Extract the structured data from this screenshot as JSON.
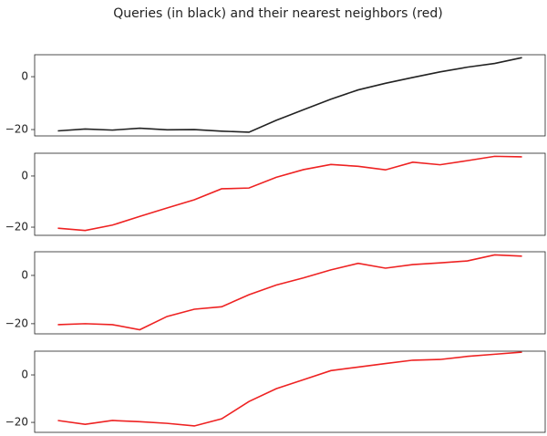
{
  "title": "Queries (in black) and their nearest neighbors (red)",
  "chart_data": [
    {
      "type": "line",
      "x": [
        0,
        1,
        2,
        3,
        4,
        5,
        6,
        7,
        8,
        9,
        10,
        11,
        12,
        13,
        14,
        15,
        16,
        17
      ],
      "xlim": [
        -0.85,
        17.85
      ],
      "ylim": [
        -22.4,
        8.3
      ],
      "yticks": [
        {
          "value": -20,
          "label": "−20"
        },
        0
      ],
      "series": [
        {
          "color": "#222222",
          "values": [
            -20.5,
            -19.8,
            -20.2,
            -19.5,
            -20.1,
            -20,
            -20.6,
            -21,
            -16.5,
            -12.5,
            -8.5,
            -5,
            -2.5,
            -0.3,
            1.8,
            3.6,
            5,
            7.2
          ]
        }
      ]
    },
    {
      "type": "line",
      "x": [
        0,
        1,
        2,
        3,
        4,
        5,
        6,
        7,
        8,
        9,
        10,
        11,
        12,
        13,
        14,
        15,
        16,
        17
      ],
      "xlim": [
        -0.85,
        17.85
      ],
      "ylim": [
        -23.2,
        8.9
      ],
      "yticks": [
        {
          "value": -20,
          "label": "−20"
        },
        0
      ],
      "series": [
        {
          "color": "#ee2222",
          "values": [
            -20.4,
            -21.3,
            -19.2,
            -15.8,
            -12.5,
            -9.3,
            -5,
            -4.7,
            -0.5,
            2.5,
            4.5,
            3.8,
            2.4,
            5.4,
            4.4,
            6,
            7.7,
            7.5
          ]
        }
      ]
    },
    {
      "type": "line",
      "x": [
        0,
        1,
        2,
        3,
        4,
        5,
        6,
        7,
        8,
        9,
        10,
        11,
        12,
        13,
        14,
        15,
        16,
        17
      ],
      "xlim": [
        -0.85,
        17.85
      ],
      "ylim": [
        -24.2,
        9.8
      ],
      "yticks": [
        {
          "value": -20,
          "label": "−20"
        },
        0
      ],
      "series": [
        {
          "color": "#ee2222",
          "values": [
            -20.4,
            -20,
            -20.4,
            -22.5,
            -17,
            -14,
            -13,
            -8,
            -4,
            -1,
            2.3,
            5,
            3,
            4.5,
            5.2,
            6,
            8.5,
            8
          ]
        }
      ]
    },
    {
      "type": "line",
      "x": [
        0,
        1,
        2,
        3,
        4,
        5,
        6,
        7,
        8,
        9,
        10,
        11,
        12,
        13,
        14,
        15,
        16,
        17
      ],
      "xlim": [
        -0.85,
        17.85
      ],
      "ylim": [
        -24.2,
        10
      ],
      "yticks": [
        {
          "value": -20,
          "label": "−20"
        },
        0
      ],
      "series": [
        {
          "color": "#ee2222",
          "values": [
            -19.2,
            -20.8,
            -19.2,
            -19.7,
            -20.4,
            -21.5,
            -18.5,
            -11.2,
            -5.8,
            -2,
            1.8,
            3.3,
            4.8,
            6.2,
            6.5,
            7.8,
            8.7,
            9.6
          ]
        }
      ]
    }
  ]
}
